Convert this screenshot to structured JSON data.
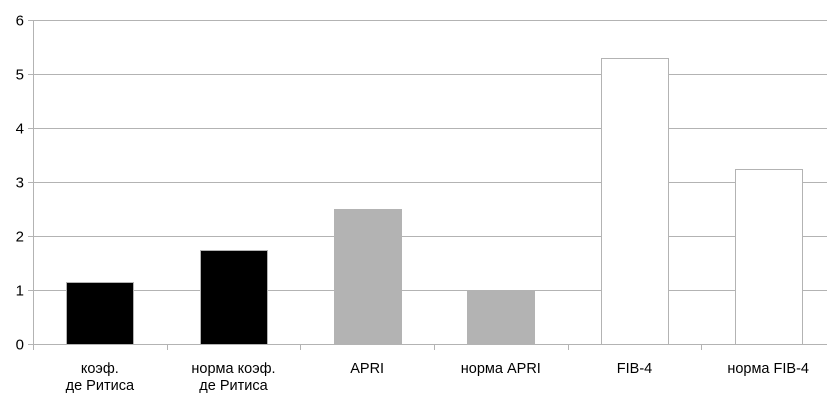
{
  "chart_data": {
    "type": "bar",
    "title": "",
    "xlabel": "",
    "ylabel": "",
    "ylim": [
      0,
      6
    ],
    "yticks": [
      0,
      1,
      2,
      3,
      4,
      5,
      6
    ],
    "grid": true,
    "categories": [
      [
        "коэф.",
        "де Ритиса"
      ],
      [
        "норма коэф.",
        "де Ритиса"
      ],
      [
        "APRI"
      ],
      [
        "норма APRI"
      ],
      [
        "FIB-4"
      ],
      [
        "норма FIB-4"
      ]
    ],
    "values": [
      1.15,
      1.75,
      2.5,
      1.0,
      5.3,
      3.25
    ],
    "bar_colors": [
      "#000000",
      "#000000",
      "#b3b3b3",
      "#b3b3b3",
      "#ffffff",
      "#ffffff"
    ],
    "bar_stroke": "#b3b3b3",
    "axis_color": "#b3b3b3",
    "grid_color": "#b3b3b3"
  }
}
